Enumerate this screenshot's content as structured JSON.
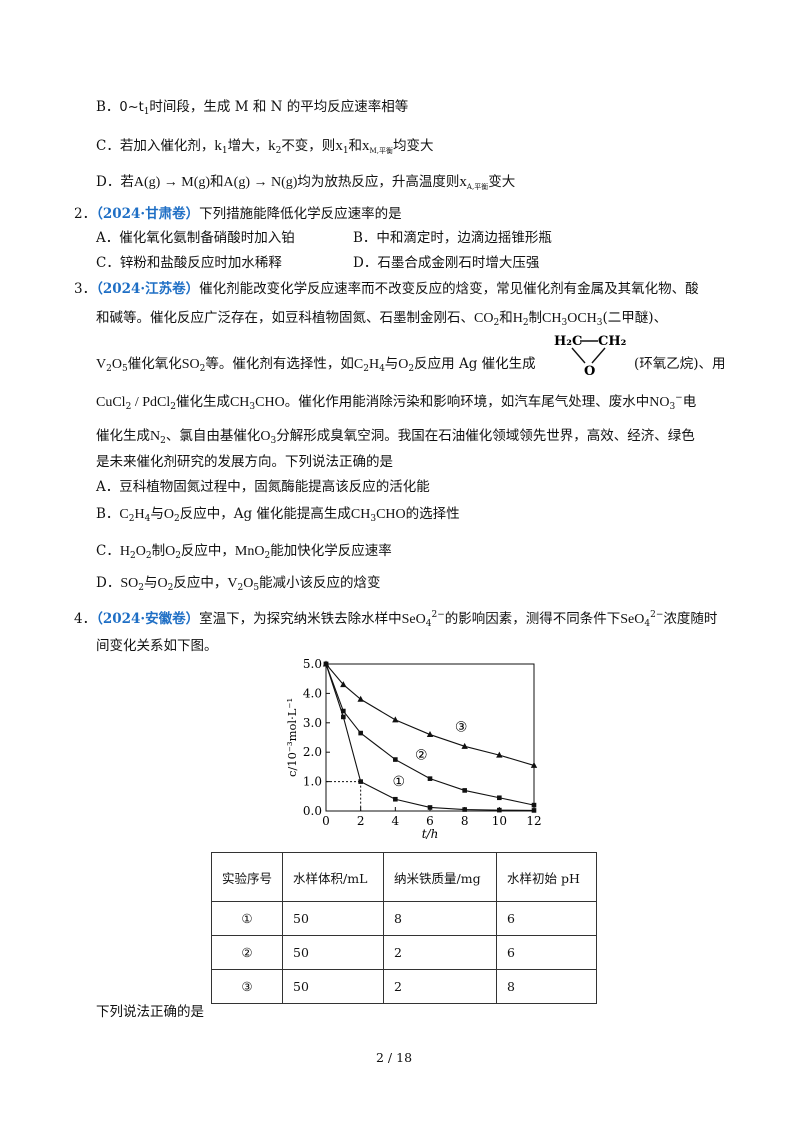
{
  "q1": {
    "B": {
      "letter": "B．",
      "pre": "0~t",
      "pre_sub": "1",
      "text": "时间段，生成 M 和 N 的平均反应速率相等"
    },
    "C": {
      "letter": "C．",
      "t1": "若加入催化剂，",
      "k1": "k",
      "k1_sub": "1",
      "t2": "增大，",
      "k2": "k",
      "k2_sub": "2",
      "t3": "不变，则",
      "x1": "x",
      "x1_sub": "1",
      "t4": "和",
      "xm": "x",
      "xm_sub": "M,平衡",
      "t5": "均变大"
    },
    "D": {
      "letter": "D．",
      "t1": "若",
      "eq1": "A(g) → M(g)",
      "t2": "和",
      "eq2": "A(g) → N(g)",
      "t3": "均为放热反应，升高温度则",
      "xa": "x",
      "xa_sub": "A,平衡",
      "t4": "变大"
    }
  },
  "q2": {
    "num": "2．",
    "tag": "（2024·甘肃卷）",
    "stem": "下列措施能降低化学反应速率的是",
    "A": "A．催化氧化氨制备硝酸时加入铂",
    "B": "B．中和滴定时，边滴边摇锥形瓶",
    "C": "C．锌粉和盐酸反应时加水稀释",
    "D": "D．石墨合成金刚石时增大压强"
  },
  "q3": {
    "num": "3．",
    "tag": "（2024·江苏卷）",
    "line1": "催化剂能改变化学反应速率而不改变反应的焓变，常见催化剂有金属及其氧化物、酸",
    "line2a": "和碱等。催化反应广泛存在，如豆科植物固氮、石墨制金刚石、",
    "co2": "CO",
    "co2_sub": "2",
    "line2b": "和",
    "h2": "H",
    "h2_sub": "2",
    "line2c": "制",
    "ch3och3": "CH",
    "ch3och3_sub": "3",
    "ch3och3_b": "OCH",
    "ch3och3_sub2": "3",
    "line2d": "(二甲醚)、",
    "v2o5_a": "V",
    "v2o5_s1": "2",
    "v2o5_b": "O",
    "v2o5_s2": "5",
    "line3a": "催化氧化",
    "so2": "SO",
    "so2_sub": "2",
    "line3b": "等。催化剂有选择性，如",
    "c2h4": "C",
    "c2h4_s1": "2",
    "c2h4_b": "H",
    "c2h4_s2": "4",
    "line3c": "与",
    "o2": "O",
    "o2_sub": "2",
    "line3d": "反应用 Ag 催化生成",
    "epoxide_h2c": "H₂C",
    "epoxide_ch2": "CH₂",
    "epoxide_o": "O",
    "line3e": "(环氧乙烷)、用",
    "line4a": "CuCl",
    "line4a_sub": "2",
    "line4b": " / PdCl",
    "line4b_sub": "2",
    "line4c": "催化生成",
    "ch3cho": "CH",
    "ch3cho_sub": "3",
    "ch3cho_b": "CHO",
    "line4d": "。催化作用能消除污染和影响环境，如汽车尾气处理、废水中",
    "no3": "NO",
    "no3_sub": "3",
    "no3_sup": "−",
    "line4e": "电",
    "line5a": "催化生成",
    "n2": "N",
    "n2_sub": "2",
    "line5b": "、氯自由基催化",
    "o3": "O",
    "o3_sub": "3",
    "line5c": "分解形成臭氧空洞。我国在石油催化领域领先世界，高效、经济、绿色",
    "line6": "是未来催化剂研究的发展方向。下列说法正确的是",
    "A": "A．豆科植物固氮过程中，固氮酶能提高该反应的活化能",
    "B_letter": "B．",
    "B_c2h4": "C",
    "B_c2h4_s1": "2",
    "B_c2h4_b": "H",
    "B_c2h4_s2": "4",
    "B_t1": "与",
    "B_o2": "O",
    "B_o2_sub": "2",
    "B_t2": "反应中，Ag 催化能提高生成",
    "B_ch3cho": "CH",
    "B_ch3cho_sub": "3",
    "B_ch3cho_b": "CHO",
    "B_t3": "的选择性",
    "C_letter": "C．",
    "C_h2o2": "H",
    "C_h2o2_s1": "2",
    "C_h2o2_b": "O",
    "C_h2o2_s2": "2",
    "C_t1": "制",
    "C_o2": "O",
    "C_o2_sub": "2",
    "C_t2": "反应中，",
    "C_mno2": "MnO",
    "C_mno2_sub": "2",
    "C_t3": "能加快化学反应速率",
    "D_letter": "D．",
    "D_so2": "SO",
    "D_so2_sub": "2",
    "D_t1": "与",
    "D_o2": "O",
    "D_o2_sub": "2",
    "D_t2": "反应中，",
    "D_v2o5": "V",
    "D_v2o5_s1": "2",
    "D_v2o5_b": "O",
    "D_v2o5_s2": "5",
    "D_t3": "能减小该反应的焓变"
  },
  "q4": {
    "num": "4．",
    "tag": "（2024·安徽卷）",
    "stem_a": "室温下，为探究纳米铁去除水样中",
    "seo": "SeO",
    "seo_sub": "4",
    "seo_sup": "2−",
    "stem_b": "的影响因素，测得不同条件下",
    "stem_c": "浓度随时",
    "line2": "间变化关系如下图。",
    "after": "下列说法正确的是"
  },
  "chart_data": {
    "type": "line",
    "xlabel": "t/h",
    "ylabel": "c/10⁻³mol·L⁻¹",
    "x_ticks": [
      "0",
      "2",
      "4",
      "6",
      "8",
      "10",
      "12"
    ],
    "y_ticks": [
      "0.0",
      "1.0",
      "2.0",
      "3.0",
      "4.0",
      "5.0"
    ],
    "xlim": [
      0,
      12
    ],
    "ylim": [
      0,
      5
    ],
    "grid": false,
    "series": [
      {
        "name": "①",
        "marker": "square",
        "x": [
          0,
          1,
          2,
          4,
          6,
          8,
          10,
          12
        ],
        "y": [
          5.0,
          3.2,
          1.0,
          0.4,
          0.12,
          0.05,
          0.03,
          0.02
        ]
      },
      {
        "name": "②",
        "marker": "square",
        "x": [
          0,
          1,
          2,
          4,
          6,
          8,
          10,
          12
        ],
        "y": [
          5.0,
          3.4,
          2.65,
          1.75,
          1.1,
          0.7,
          0.45,
          0.2
        ]
      },
      {
        "name": "③",
        "marker": "triangle",
        "x": [
          0,
          1,
          2,
          4,
          6,
          8,
          10,
          12
        ],
        "y": [
          5.0,
          4.3,
          3.8,
          3.1,
          2.6,
          2.2,
          1.9,
          1.55
        ]
      }
    ],
    "annotations": [
      "①",
      "②",
      "③"
    ],
    "guide_point": {
      "x": 2,
      "y": 1.0
    }
  },
  "table": {
    "headers": [
      "实验序号",
      "水样体积/mL",
      "纳米铁质量/mg",
      "水样初始 pH"
    ],
    "rows": [
      [
        "①",
        "50",
        "8",
        "6"
      ],
      [
        "②",
        "50",
        "2",
        "6"
      ],
      [
        "③",
        "50",
        "2",
        "8"
      ]
    ]
  },
  "footer": {
    "page": "2  /  18"
  }
}
